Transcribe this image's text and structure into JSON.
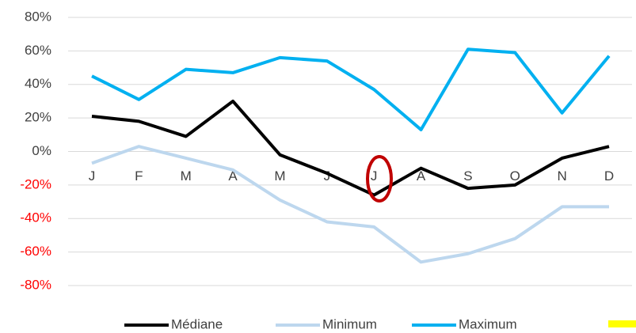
{
  "chart_data": {
    "type": "line",
    "categories": [
      "J",
      "F",
      "M",
      "A",
      "M",
      "J",
      "J",
      "A",
      "S",
      "O",
      "N",
      "D"
    ],
    "series": [
      {
        "name": "Médiane",
        "color": "#000000",
        "values": [
          21,
          18,
          9,
          30,
          -2,
          -13,
          -26,
          -10,
          -22,
          -20,
          -4,
          3
        ]
      },
      {
        "name": "Minimum",
        "color": "#bdd7ee",
        "values": [
          -7,
          3,
          -4,
          -11,
          -29,
          -42,
          -45,
          -66,
          -61,
          -52,
          -33,
          -33
        ]
      },
      {
        "name": "Maximum",
        "color": "#00b0f0",
        "values": [
          45,
          31,
          49,
          47,
          56,
          54,
          37,
          13,
          61,
          59,
          23,
          57
        ]
      }
    ],
    "ylim": [
      -80,
      80
    ],
    "yticks": [
      {
        "value": -80,
        "label": "-80%"
      },
      {
        "value": -60,
        "label": "-60%"
      },
      {
        "value": -40,
        "label": "-40%"
      },
      {
        "value": -20,
        "label": "-20%"
      },
      {
        "value": 0,
        "label": "0%"
      },
      {
        "value": 20,
        "label": "20%"
      },
      {
        "value": 40,
        "label": "40%"
      },
      {
        "value": 60,
        "label": "60%"
      },
      {
        "value": 80,
        "label": "80%"
      }
    ],
    "grid": true,
    "negative_tick_color": "#ff0000",
    "legend": "bottom"
  }
}
